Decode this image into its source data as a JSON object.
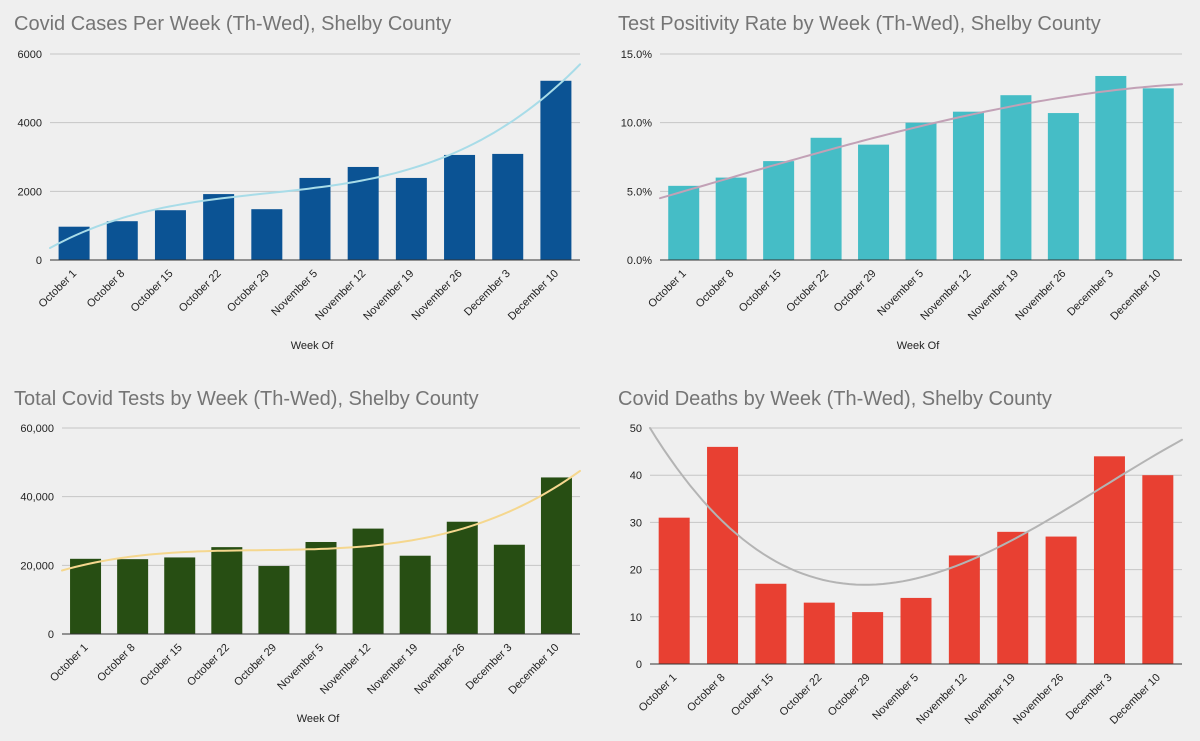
{
  "chart_data": [
    {
      "id": "cases",
      "type": "bar",
      "title": "Covid Cases Per Week (Th-Wed), Shelby County",
      "xlabel": "Week Of",
      "ylabel": "",
      "categories": [
        "October 1",
        "October 8",
        "October 15",
        "October 22",
        "October 29",
        "November 5",
        "November 12",
        "November 19",
        "November 26",
        "December 3",
        "December 10"
      ],
      "values": [
        970,
        1130,
        1450,
        1920,
        1480,
        2390,
        2710,
        2390,
        3060,
        3090,
        5220
      ],
      "ylim": [
        0,
        6000
      ],
      "yticks": [
        0,
        2000,
        4000,
        6000
      ],
      "ytick_labels": [
        "0",
        "2000",
        "4000",
        "6000"
      ],
      "bar_color": "#0b5394",
      "trendline": {
        "type": "polynomial",
        "color": "#a8dce8",
        "start": 350,
        "end": 5700
      },
      "grid": true,
      "legend": "none"
    },
    {
      "id": "positivity",
      "type": "bar",
      "title": "Test Positivity Rate by Week (Th-Wed), Shelby County",
      "xlabel": "Week Of",
      "ylabel": "",
      "categories": [
        "October 1",
        "October 8",
        "October 15",
        "October 22",
        "October 29",
        "November 5",
        "November 12",
        "November 19",
        "November 26",
        "December 3",
        "December 10"
      ],
      "values": [
        0.054,
        0.06,
        0.072,
        0.089,
        0.084,
        0.1,
        0.108,
        0.12,
        0.107,
        0.134,
        0.125
      ],
      "ylim": [
        0,
        0.15
      ],
      "yticks": [
        0,
        0.05,
        0.1,
        0.15
      ],
      "ytick_labels": [
        "0.0%",
        "5.0%",
        "10.0%",
        "15.0%"
      ],
      "bar_color": "#45bdc6",
      "trendline": {
        "type": "polynomial",
        "color": "#c2a1b6",
        "start": 0.045,
        "end": 0.128
      },
      "grid": true,
      "legend": "none"
    },
    {
      "id": "tests",
      "type": "bar",
      "title": "Total Covid Tests by Week (Th-Wed), Shelby County",
      "xlabel": "Week Of",
      "ylabel": "",
      "categories": [
        "October 1",
        "October 8",
        "October 15",
        "October 22",
        "October 29",
        "November 5",
        "November 12",
        "November 19",
        "November 26",
        "December 3",
        "December 10"
      ],
      "values": [
        21900,
        21800,
        22300,
        25300,
        19800,
        26800,
        30700,
        22800,
        32700,
        26000,
        45600
      ],
      "ylim": [
        0,
        60000
      ],
      "yticks": [
        0,
        20000,
        40000,
        60000
      ],
      "ytick_labels": [
        "0",
        "20,000",
        "40,000",
        "60,000"
      ],
      "bar_color": "#274e13",
      "trendline": {
        "type": "polynomial",
        "color": "#f5d78e",
        "start": 18500,
        "end": 47500
      },
      "grid": true,
      "legend": "none"
    },
    {
      "id": "deaths",
      "type": "bar",
      "title": "Covid Deaths by Week (Th-Wed), Shelby County",
      "xlabel": "",
      "ylabel": "",
      "categories": [
        "October 1",
        "October 8",
        "October 15",
        "October 22",
        "October 29",
        "November 5",
        "November 12",
        "November 19",
        "November 26",
        "December 3",
        "December 10"
      ],
      "values": [
        31,
        46,
        17,
        13,
        11,
        14,
        23,
        28,
        27,
        44,
        40
      ],
      "ylim": [
        0,
        50
      ],
      "yticks": [
        0,
        10,
        20,
        30,
        40,
        50
      ],
      "ytick_labels": [
        "0",
        "10",
        "20",
        "30",
        "40",
        "50"
      ],
      "bar_color": "#e84032",
      "trendline": {
        "type": "polynomial",
        "color": "#b4b4b4",
        "start": 50,
        "end": 47.5
      },
      "grid": true,
      "legend": "none"
    }
  ]
}
